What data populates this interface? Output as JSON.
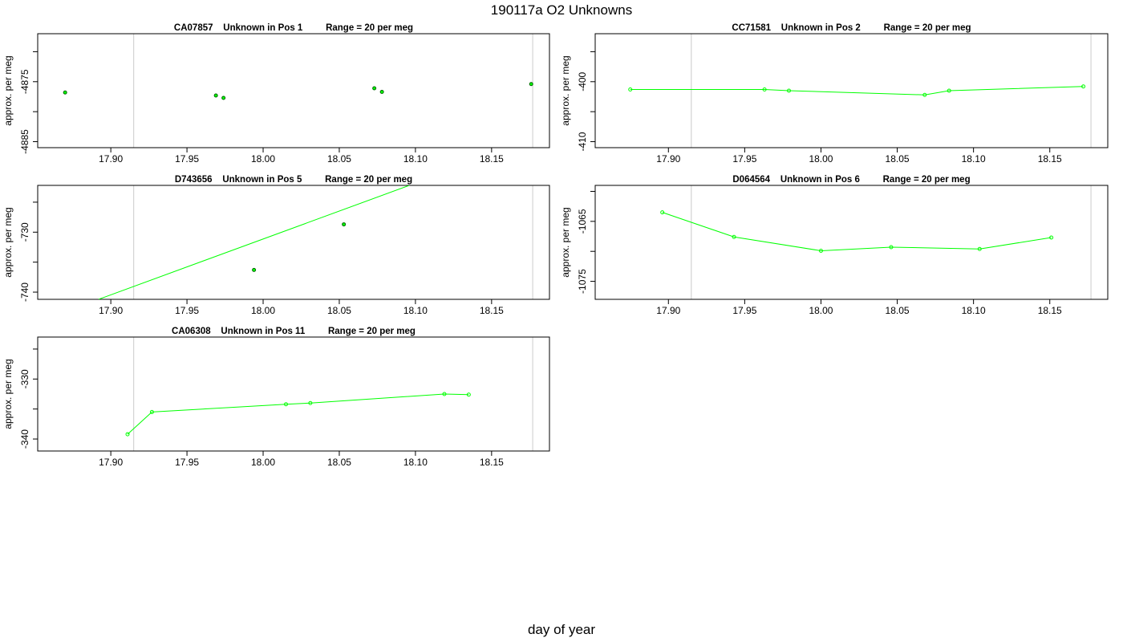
{
  "figure": {
    "title": "190117a  O2 Unknowns",
    "xlabel": "day of year"
  },
  "colors": {
    "line": "#00ff00",
    "point_border": "#006400",
    "vline": "#d3d3d3",
    "frame": "#000000"
  },
  "chart_data": [
    {
      "type": "scatter",
      "id": "CA07857",
      "title": "CA07857    Unknown in Pos 1         Range = 20 per meg",
      "ylabel": "approx. per meg",
      "xlim": [
        17.852,
        18.188
      ],
      "ylim": [
        -4886.0,
        -4867.0
      ],
      "xticks": [
        "17.90",
        "17.95",
        "18.00",
        "18.05",
        "18.10",
        "18.15"
      ],
      "yticks": [
        "-4875",
        "-4885"
      ],
      "yticks_values": [
        -4875,
        -4885
      ],
      "vlines": [
        17.915,
        18.177
      ],
      "connect": false,
      "marker": "dark",
      "x": [
        17.87,
        17.969,
        17.974,
        18.073,
        18.078,
        18.176
      ],
      "y": [
        -4876.8,
        -4877.3,
        -4877.7,
        -4876.1,
        -4876.7,
        -4875.4
      ]
    },
    {
      "type": "line",
      "id": "CC71581",
      "title": "CC71581    Unknown in Pos 2         Range = 20 per meg",
      "ylabel": "approx. per meg",
      "xlim": [
        17.852,
        18.188
      ],
      "ylim": [
        -411.0,
        -392.0
      ],
      "xticks": [
        "17.90",
        "17.95",
        "18.00",
        "18.05",
        "18.10",
        "18.15"
      ],
      "yticks": [
        "-400",
        "-410"
      ],
      "yticks_values": [
        -400,
        -410
      ],
      "vlines": [
        17.915,
        18.177
      ],
      "connect": true,
      "marker": "green",
      "x": [
        17.875,
        17.963,
        17.979,
        18.068,
        18.084,
        18.172
      ],
      "y": [
        -401.3,
        -401.3,
        -401.5,
        -402.2,
        -401.5,
        -400.8
      ]
    },
    {
      "type": "scatter",
      "id": "D743656",
      "title": "D743656    Unknown in Pos 5         Range = 20 per meg",
      "ylabel": "approx. per meg",
      "xlim": [
        17.852,
        18.188
      ],
      "ylim": [
        -741.2,
        -722.2
      ],
      "xticks": [
        "17.90",
        "17.95",
        "18.00",
        "18.05",
        "18.10",
        "18.15"
      ],
      "yticks": [
        "-730",
        "-740"
      ],
      "yticks_values": [
        -730,
        -740
      ],
      "vlines": [
        17.915,
        18.177
      ],
      "connect": false,
      "marker": "dark",
      "x": [
        17.994,
        18.053
      ],
      "y": [
        -736.3,
        -728.7
      ],
      "fit_line": {
        "x": [
          17.892,
          18.096
        ],
        "y": [
          -741.2,
          -722.2
        ]
      }
    },
    {
      "type": "line",
      "id": "D064564",
      "title": "D064564    Unknown in Pos 6         Range = 20 per meg",
      "ylabel": "approx. per meg",
      "xlim": [
        17.852,
        18.188
      ],
      "ylim": [
        -1078.0,
        -1059.0
      ],
      "xticks": [
        "17.90",
        "17.95",
        "18.00",
        "18.05",
        "18.10",
        "18.15"
      ],
      "yticks": [
        "-1065",
        "-1075"
      ],
      "yticks_values": [
        -1065,
        -1075
      ],
      "vlines": [
        17.915,
        18.177
      ],
      "connect": true,
      "marker": "green",
      "x": [
        17.896,
        17.943,
        18.0,
        18.046,
        18.104,
        18.151
      ],
      "y": [
        -1063.5,
        -1067.6,
        -1069.9,
        -1069.3,
        -1069.6,
        -1067.7
      ]
    },
    {
      "type": "line",
      "id": "CA06308",
      "title": "CA06308    Unknown in Pos 11         Range = 20 per meg",
      "ylabel": "approx. per meg",
      "xlim": [
        17.852,
        18.188
      ],
      "ylim": [
        -342.0,
        -323.0
      ],
      "xticks": [
        "17.90",
        "17.95",
        "18.00",
        "18.05",
        "18.10",
        "18.15"
      ],
      "yticks": [
        "-330",
        "-340"
      ],
      "yticks_values": [
        -330,
        -340
      ],
      "vlines": [
        17.915,
        18.177
      ],
      "connect": true,
      "marker": "green",
      "x": [
        17.911,
        17.927,
        18.015,
        18.031,
        18.119,
        18.135
      ],
      "y": [
        -339.2,
        -335.5,
        -334.2,
        -334.0,
        -332.5,
        -332.6
      ]
    }
  ]
}
